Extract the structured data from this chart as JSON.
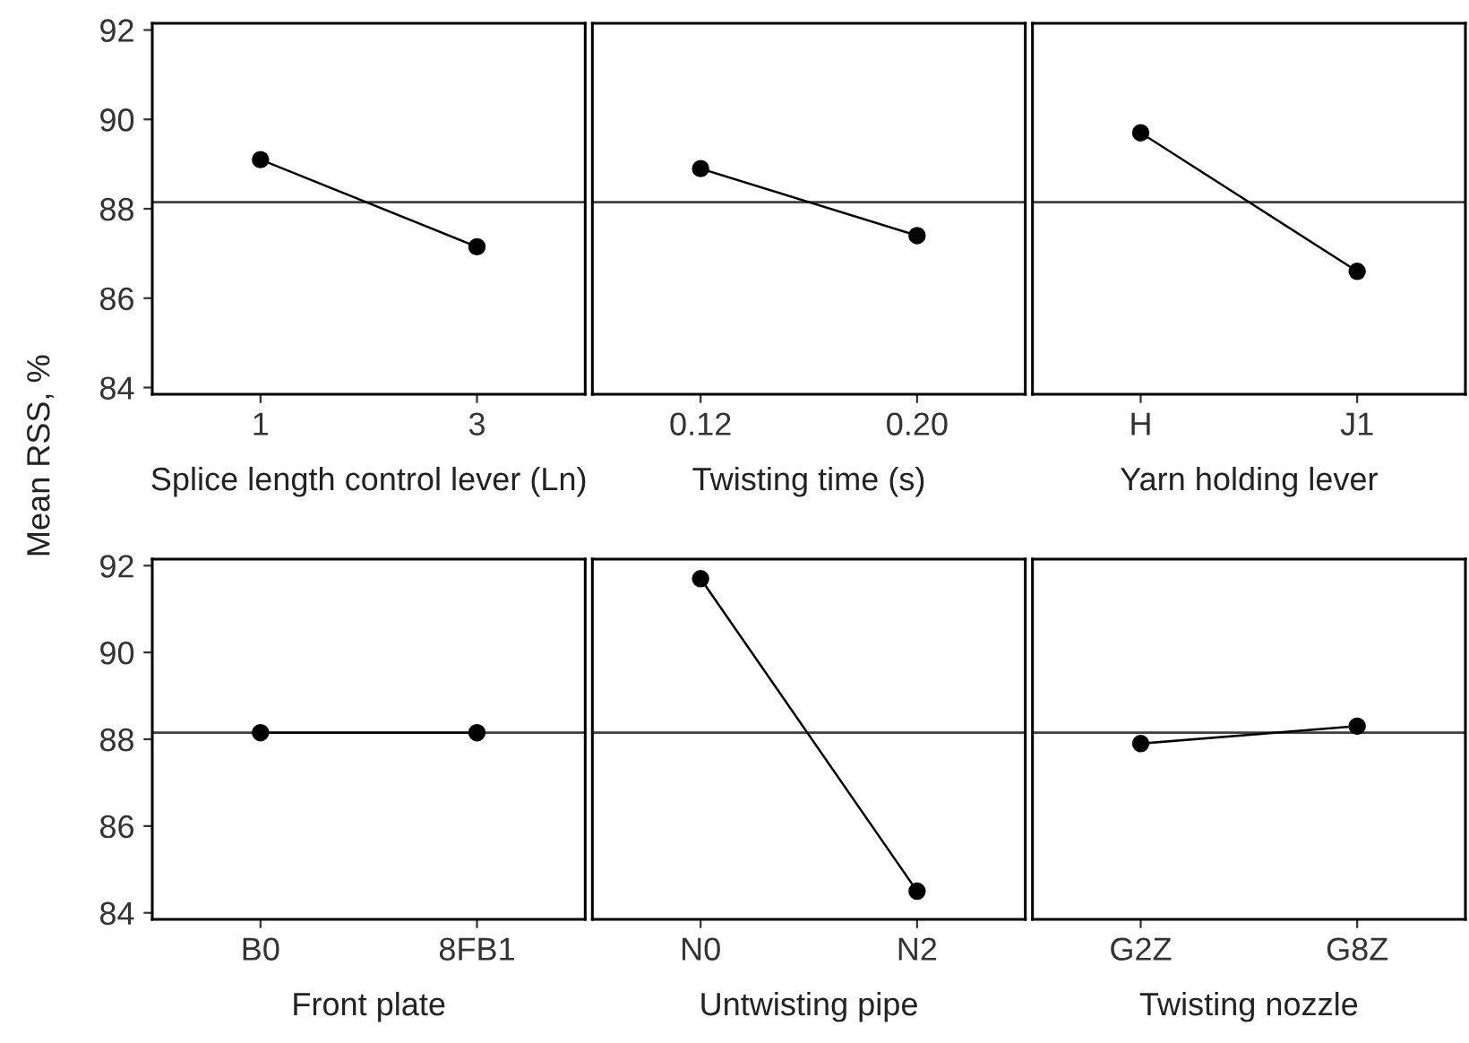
{
  "chart_data": [
    {
      "type": "line",
      "categories": [
        "1",
        "3"
      ],
      "xlabel": "Splice length control lever (Ln)",
      "ylabel": "Mean RSS, %",
      "series": [
        {
          "color": "#000000",
          "values": [
            89.1,
            87.15
          ]
        }
      ],
      "ylim": [
        83.85,
        92.15
      ],
      "yticks": [
        84,
        86,
        88,
        90,
        92
      ],
      "ref_lines": [
        {
          "axis": "y",
          "value": 88.15,
          "color": "#404040"
        }
      ],
      "marker": "circle",
      "line_style": "solid",
      "grid": false
    },
    {
      "type": "line",
      "categories": [
        "0.12",
        "0.20"
      ],
      "xlabel": "Twisting time (s)",
      "series": [
        {
          "color": "#000000",
          "values": [
            88.9,
            87.4
          ]
        }
      ],
      "ylim": [
        83.85,
        92.15
      ],
      "yticks": [
        84,
        86,
        88,
        90,
        92
      ],
      "tick_labels": "x",
      "ref_lines": [
        {
          "axis": "y",
          "value": 88.15,
          "color": "#404040"
        }
      ],
      "marker": "circle",
      "line_style": "solid",
      "grid": false
    },
    {
      "type": "line",
      "categories": [
        "H",
        "J1"
      ],
      "xlabel": "Yarn holding lever",
      "series": [
        {
          "color": "#000000",
          "values": [
            89.7,
            86.6
          ]
        }
      ],
      "ylim": [
        83.85,
        92.15
      ],
      "yticks": [
        84,
        86,
        88,
        90,
        92
      ],
      "tick_labels": "x",
      "ref_lines": [
        {
          "axis": "y",
          "value": 88.15,
          "color": "#404040"
        }
      ],
      "marker": "circle",
      "line_style": "solid",
      "grid": false
    },
    {
      "type": "line",
      "categories": [
        "B0",
        "8FB1"
      ],
      "xlabel": "Front plate",
      "series": [
        {
          "color": "#000000",
          "values": [
            88.15,
            88.15
          ]
        }
      ],
      "ylim": [
        83.85,
        92.15
      ],
      "yticks": [
        84,
        86,
        88,
        90,
        92
      ],
      "ref_lines": [
        {
          "axis": "y",
          "value": 88.15,
          "color": "#404040"
        }
      ],
      "marker": "circle",
      "line_style": "solid",
      "grid": false
    },
    {
      "type": "line",
      "categories": [
        "N0",
        "N2"
      ],
      "xlabel": "Untwisting pipe",
      "series": [
        {
          "color": "#000000",
          "values": [
            91.7,
            84.5
          ]
        }
      ],
      "ylim": [
        83.85,
        92.15
      ],
      "yticks": [
        84,
        86,
        88,
        90,
        92
      ],
      "tick_labels": "x",
      "ref_lines": [
        {
          "axis": "y",
          "value": 88.15,
          "color": "#404040"
        }
      ],
      "marker": "circle",
      "line_style": "solid",
      "grid": false
    },
    {
      "type": "line",
      "categories": [
        "G2Z",
        "G8Z"
      ],
      "xlabel": "Twisting nozzle",
      "series": [
        {
          "color": "#000000",
          "values": [
            87.9,
            88.3
          ]
        }
      ],
      "ylim": [
        83.85,
        92.15
      ],
      "yticks": [
        84,
        86,
        88,
        90,
        92
      ],
      "tick_labels": "x",
      "ref_lines": [
        {
          "axis": "y",
          "value": 88.15,
          "color": "#404040"
        }
      ],
      "marker": "circle",
      "line_style": "solid",
      "grid": false
    }
  ]
}
